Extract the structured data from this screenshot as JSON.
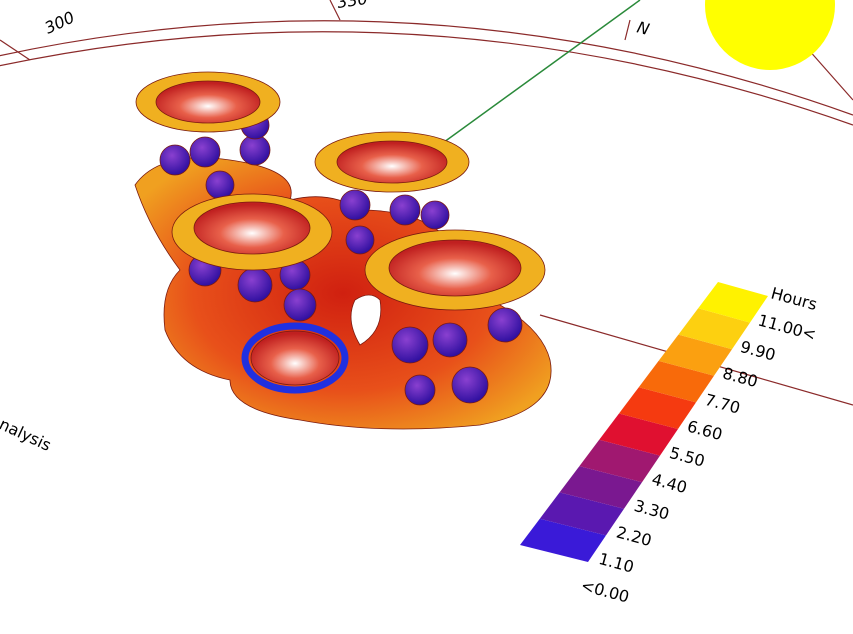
{
  "compass": {
    "labels": [
      "300",
      "330",
      "N"
    ]
  },
  "caption": "nalysis",
  "legend": {
    "title": "Hours",
    "labels": [
      "<0.00",
      "1.10",
      "2.20",
      "3.30",
      "4.40",
      "5.50",
      "6.60",
      "7.70",
      "8.80",
      "9.90",
      "11.00<"
    ],
    "colors": [
      "#1010f0",
      "#3a1ad8",
      "#5a18b0",
      "#7a1890",
      "#a01870",
      "#e01030",
      "#f53a10",
      "#f86a0a",
      "#fba010",
      "#fdd010",
      "#fff200"
    ]
  }
}
